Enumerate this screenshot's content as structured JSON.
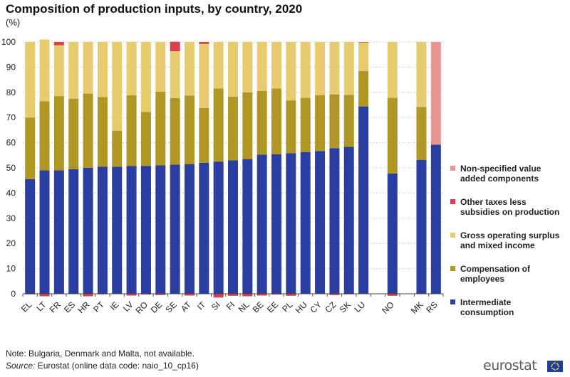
{
  "title": "Composition of production inputs, by country, 2020",
  "unit": "(%)",
  "note": "Note: Bulgaria, Denmark and Malta, not available.",
  "source_prefix": "Source:",
  "source_text": " Eurostat (online data code: naio_10_cp16)",
  "logo_text": "eurostat",
  "chart_data": {
    "type": "bar",
    "stacked": true,
    "title": "Composition of production inputs, by country, 2020",
    "ylabel": "(%)",
    "ylim": [
      -5,
      100
    ],
    "yticks": [
      0,
      10,
      20,
      30,
      40,
      50,
      60,
      70,
      80,
      90,
      100
    ],
    "grid": true,
    "legend_position": "right",
    "categories": [
      "EL",
      "LT",
      "FR",
      "ES",
      "HR",
      "PT",
      "IE",
      "LV",
      "RO",
      "DE",
      "SE",
      "AT",
      "IT",
      "SI",
      "FI",
      "NL",
      "BE",
      "EE",
      "PL",
      "HU",
      "CY",
      "CZ",
      "SK",
      "LU",
      "",
      "NO",
      "",
      "MK",
      "RS"
    ],
    "series": [
      {
        "name": "Intermediate consumption",
        "color": "#2a3ea1",
        "values": [
          45.5,
          49,
          49,
          49.5,
          50,
          50.5,
          50.5,
          50.8,
          50.8,
          51,
          51.3,
          51.5,
          52,
          52.5,
          53,
          53.5,
          55.3,
          55.4,
          55.8,
          56.3,
          56.7,
          57.8,
          58.4,
          74.4,
          null,
          47.8,
          null,
          53.2,
          59.2
        ]
      },
      {
        "name": "Compensation of employees",
        "color": "#b09623",
        "values": [
          24.5,
          27.5,
          29.5,
          28,
          29.5,
          27.6,
          14.3,
          28,
          21.4,
          29.3,
          26.4,
          27.2,
          21.8,
          29,
          25.3,
          26.5,
          25.3,
          26.1,
          21,
          21.5,
          22.2,
          21.4,
          20.6,
          14.1,
          null,
          30,
          null,
          21,
          0
        ]
      },
      {
        "name": "Gross operating surplus and mixed income",
        "color": "#e6cc6e",
        "values": [
          30,
          24.5,
          20.2,
          22.5,
          20.5,
          21.9,
          35.2,
          21.2,
          27.8,
          19.7,
          18.6,
          21.3,
          25.4,
          18.5,
          21.7,
          20,
          19.4,
          18.5,
          23.2,
          22.2,
          21.1,
          20.8,
          21,
          11.3,
          null,
          22.2,
          null,
          25.8,
          0
        ]
      },
      {
        "name": "Other taxes less subsidies on production",
        "color": "#d9404a",
        "values": [
          -0.2,
          -1,
          1.3,
          0,
          -1,
          -0.2,
          0,
          -0.7,
          -0.3,
          -0.5,
          3.8,
          -0.7,
          0.8,
          -1.5,
          -0.8,
          -1,
          -0.7,
          -0.3,
          -0.8,
          0,
          0,
          -0.5,
          -0.2,
          0.2,
          null,
          -0.8,
          null,
          0,
          0
        ]
      },
      {
        "name": "Non-specified value added components",
        "color": "#e89494",
        "values": [
          0,
          0,
          0,
          0,
          0,
          0,
          0,
          0,
          0,
          0,
          0,
          0,
          0,
          0,
          0,
          0,
          0,
          0,
          0,
          0,
          0,
          0,
          0,
          0,
          null,
          0,
          null,
          0,
          40.8
        ]
      }
    ]
  },
  "legend": [
    {
      "label": "Non-specified value added components",
      "color": "#e89494"
    },
    {
      "label": "Other taxes less subsidies on production",
      "color": "#d9404a"
    },
    {
      "label": "Gross operating surplus and mixed income",
      "color": "#e6cc6e"
    },
    {
      "label": "Compensation of employees",
      "color": "#b09623"
    },
    {
      "label": "Intermediate consumption",
      "color": "#2a3ea1"
    }
  ]
}
